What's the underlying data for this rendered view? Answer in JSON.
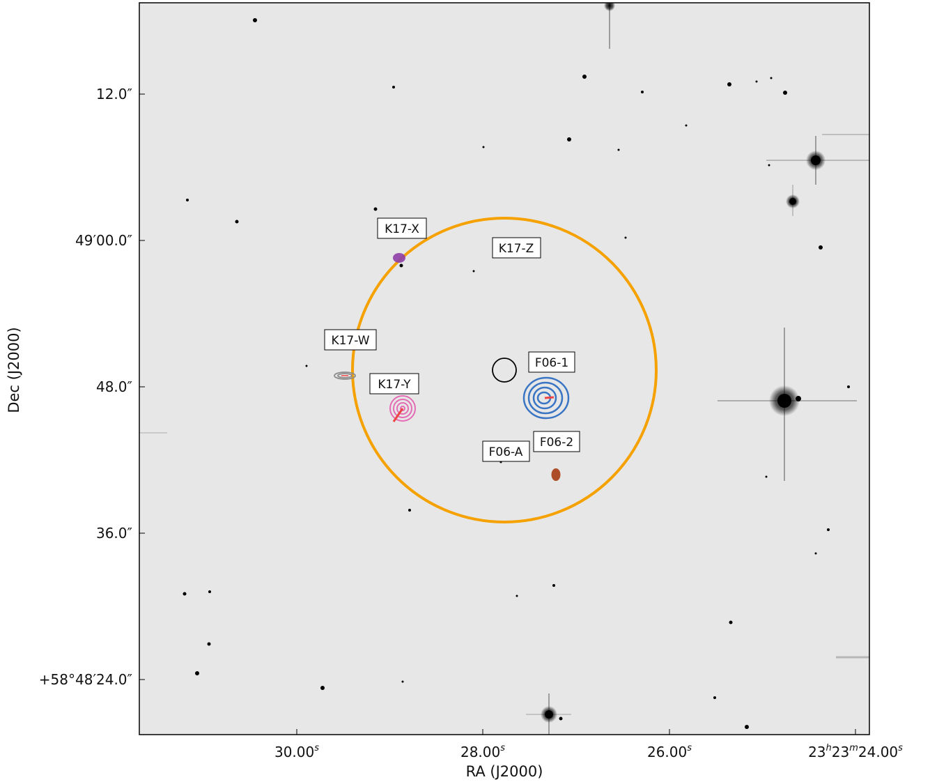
{
  "axes": {
    "xlabel": "RA (J2000)",
    "ylabel": "Dec (J2000)",
    "x_ticks": [
      {
        "prefix": "30.00",
        "sup": "s"
      },
      {
        "prefix": "28.00",
        "sup": "s"
      },
      {
        "prefix": "26.00",
        "sup": "s"
      },
      {
        "prefix": "23",
        "sup": "h",
        "mid": "23",
        "sup2": "m",
        "suffix": "24.00",
        "sup3": "s"
      }
    ],
    "y_ticks": [
      "12.0″",
      "49′00.0″",
      "48.0″",
      "36.0″",
      "+58°48′24.0″"
    ]
  },
  "labels": {
    "k17x": "K17-X",
    "k17z": "K17-Z",
    "k17w": "K17-W",
    "k17y": "K17-Y",
    "f061": "F06-1",
    "f06a": "F06-A",
    "f062": "F06-2"
  },
  "colors": {
    "background": "#e7e7e7",
    "circle": "#f5a100",
    "f06_1_contours": "#3a75c4",
    "k17_y_contours": "#e46cb4",
    "k17_x_blob": "#8e3ea8",
    "k17_w_contours": "#8a8a8a",
    "f06_2_blob": "#a9441c",
    "arrow": "#ee4444"
  }
}
